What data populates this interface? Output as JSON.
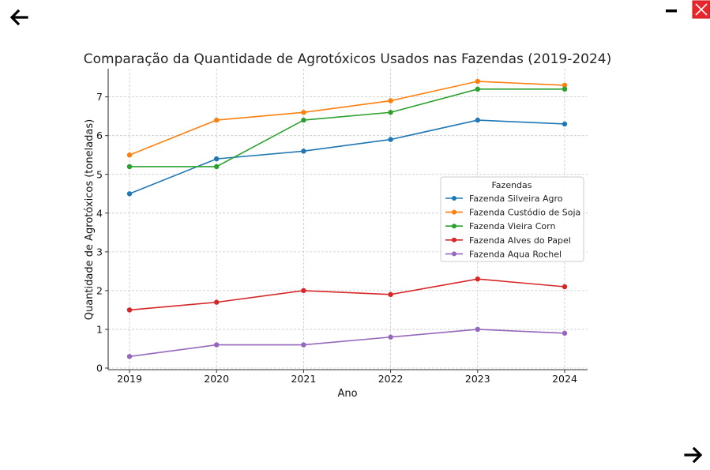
{
  "navigation": {
    "back_icon": "arrow-left-icon",
    "forward_icon": "arrow-right-icon",
    "minimize_icon": "minimize-icon",
    "close_icon": "close-icon",
    "close_color": "#e8262b"
  },
  "chart_data": {
    "type": "line",
    "title": "Comparação da Quantidade de Agrotóxicos Usados nas Fazendas (2019-2024)",
    "xlabel": "Ano",
    "ylabel": "Quantidade de Agrotóxicos (toneladas)",
    "categories": [
      "2019",
      "2020",
      "2021",
      "2022",
      "2023",
      "2024"
    ],
    "ylim": [
      0,
      7.7
    ],
    "yticks": [
      "0",
      "1",
      "2",
      "3",
      "4",
      "5",
      "6",
      "7"
    ],
    "grid": true,
    "legend_title": "Fazendas",
    "legend_position": "center-right",
    "series": [
      {
        "name": "Fazenda Silveira Agro",
        "color": "#1f77b4",
        "values": [
          4.5,
          5.4,
          5.6,
          5.9,
          6.4,
          6.3
        ]
      },
      {
        "name": "Fazenda Custódio de Soja",
        "color": "#ff7f0e",
        "values": [
          5.5,
          6.4,
          6.6,
          6.9,
          7.4,
          7.3
        ]
      },
      {
        "name": "Fazenda Vieira Corn",
        "color": "#2ca02c",
        "values": [
          5.2,
          5.2,
          6.4,
          6.6,
          7.2,
          7.2
        ]
      },
      {
        "name": "Fazenda Alves do Papel",
        "color": "#d62728",
        "values": [
          1.5,
          1.7,
          2.0,
          1.9,
          2.3,
          2.1
        ]
      },
      {
        "name": "Fazenda Aqua Rochel",
        "color": "#9467bd",
        "values": [
          0.3,
          0.6,
          0.6,
          0.8,
          1.0,
          0.9
        ]
      }
    ]
  }
}
